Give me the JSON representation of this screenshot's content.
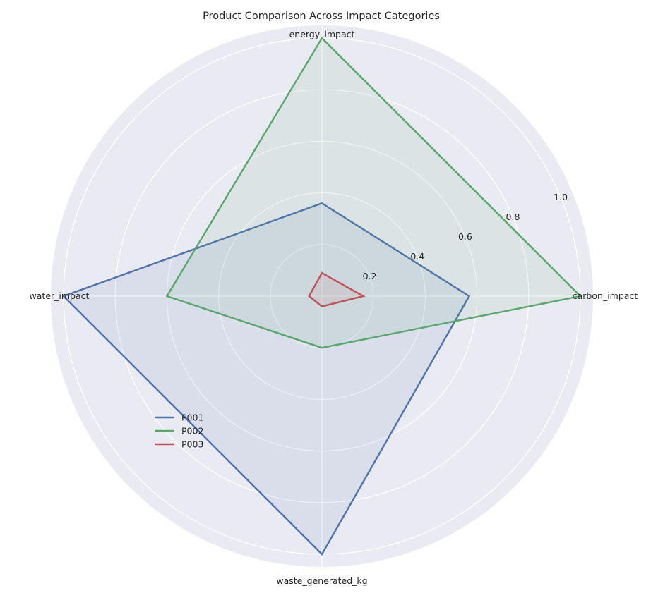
{
  "chart_data": {
    "type": "radar",
    "title": "Product Comparison Across Impact Categories",
    "axes": [
      "carbon_impact",
      "energy_impact",
      "water_impact",
      "waste_generated_kg"
    ],
    "rlim": [
      0,
      1.0
    ],
    "rticks": [
      "0.2",
      "0.4",
      "0.6",
      "0.8",
      "1.0"
    ],
    "rtick_values": [
      0.2,
      0.4,
      0.6,
      0.8,
      1.0
    ],
    "grid": true,
    "legend_position": "lower-left",
    "series": [
      {
        "name": "P001",
        "color": "#4c72b0",
        "values": [
          0.57,
          0.36,
          1.0,
          1.0
        ]
      },
      {
        "name": "P002",
        "color": "#55a868",
        "values": [
          1.0,
          1.0,
          0.6,
          0.2
        ]
      },
      {
        "name": "P003",
        "color": "#c44e52",
        "values": [
          0.16,
          0.09,
          0.05,
          0.04
        ]
      }
    ]
  }
}
